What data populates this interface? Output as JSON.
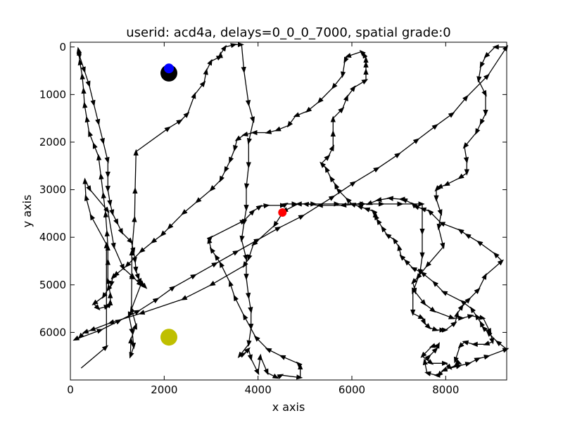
{
  "chart_data": {
    "type": "line",
    "title": "userid: acd4a, delays=0_0_0_7000, spatial grade:0",
    "xlabel": "x axis",
    "ylabel": "y axis",
    "xlim": [
      0,
      9300
    ],
    "ylim": [
      7000,
      -100
    ],
    "y_inverted": true,
    "grid": false,
    "legend": "none",
    "x_ticks": [
      "0",
      "2000",
      "4000",
      "6000",
      "8000"
    ],
    "y_ticks": [
      "0",
      "1000",
      "2000",
      "3000",
      "4000",
      "5000",
      "6000"
    ],
    "series": [
      {
        "style": "black line with arrowheads",
        "color": "#000000",
        "x": [
          230,
          770,
          770,
          440,
          330,
          310,
          420,
          800,
          930,
          1130,
          1350,
          1500,
          1250,
          1320,
          1350,
          1280,
          1290,
          1400,
          1300,
          1310,
          1310,
          1370,
          1380,
          1400,
          2100,
          2350,
          2500,
          2650,
          2850,
          2900,
          3000,
          3200,
          3200,
          3300,
          3500,
          3650,
          3700,
          3800,
          3900,
          3800,
          3800,
          3750,
          3750,
          3700,
          3650,
          3750,
          3750,
          3800,
          3850,
          3850,
          3800,
          3600,
          3700,
          3800,
          3850,
          4000,
          4050,
          4200,
          4400,
          4500,
          4900,
          4900,
          4850,
          4500,
          4200,
          3950,
          3700,
          3500,
          3400,
          3200,
          3100,
          3000,
          2950,
          3000,
          3700,
          3900,
          4050,
          4200,
          4550,
          4600,
          4800,
          5200,
          5700,
          6250,
          6650,
          7050,
          7500,
          7500,
          7500,
          7450,
          7300,
          7300,
          7500,
          7550,
          7650,
          7800,
          7950,
          8000,
          8200,
          8250,
          8350,
          8500,
          8700,
          8850,
          9200,
          9050,
          8700,
          8450,
          8300,
          7900,
          7650,
          7500,
          7350,
          7300,
          7100,
          7050,
          6800,
          6550,
          6350,
          6150,
          5800,
          5300,
          5000,
          4850,
          4550,
          4350,
          3900,
          3800,
          3700,
          3000,
          2400,
          1500,
          850,
          450,
          300,
          200,
          100,
          650,
          1050,
          1450,
          1850,
          2200,
          2650,
          3100,
          3550,
          4000,
          4450,
          4950,
          5600,
          6050,
          6550,
          7000,
          7400,
          7800,
          8150,
          8450,
          8900,
          9300,
          9050,
          8850,
          8750,
          8700,
          8850,
          8850,
          8750,
          8650,
          8400,
          8450,
          8450,
          8300,
          8000,
          7850,
          7800,
          7800,
          7900,
          7850,
          7950,
          7600,
          7400,
          7300,
          7350,
          7550,
          7750,
          8150,
          8350,
          8550,
          8800,
          8950,
          9000,
          8850,
          8600,
          8400,
          8300,
          8200,
          8300,
          8200,
          7950,
          7850,
          7800,
          7600,
          7550,
          7650,
          7800,
          7850,
          7700,
          7500,
          7700,
          8000,
          8100,
          8300,
          8500,
          8700,
          8900,
          9300,
          9100,
          8900,
          8800,
          8750,
          8650,
          8550,
          8350,
          7950,
          7750,
          7500,
          7300,
          7150,
          7050,
          7000,
          6900,
          6750,
          6650,
          6550,
          6500,
          6500,
          6450,
          6300,
          6150,
          6000,
          5900,
          5700,
          5650,
          5550,
          5450,
          5350,
          5500,
          5600,
          5600,
          5600,
          5800,
          5900,
          6050,
          6300,
          6300,
          6300,
          6300,
          6250,
          6200,
          5900,
          5850,
          5800,
          5600,
          5300,
          5050,
          4800,
          4650,
          4400,
          4200,
          3900,
          3700,
          3550,
          3500,
          3400,
          3300,
          3200,
          3000,
          2700,
          2400,
          2100,
          1950,
          1750,
          1500,
          1200,
          950,
          900,
          870,
          800,
          700,
          500,
          600,
          800,
          850,
          850,
          850,
          800,
          800,
          800,
          780,
          750,
          700,
          650,
          600,
          500,
          400,
          350,
          300,
          280,
          250,
          200,
          180,
          170,
          200,
          300,
          400,
          500,
          600,
          700,
          800,
          800,
          800,
          850,
          900,
          1000,
          1100,
          1300,
          1350,
          1380,
          1400,
          1450,
          1500,
          1550,
          1600
        ],
        "y": [
          6750,
          6300,
          4150,
          3550,
          3150,
          2800,
          3000,
          3450,
          4200,
          4650,
          4850,
          5000,
          5650,
          6000,
          6300,
          6500,
          6150,
          5850,
          5500,
          4800,
          4300,
          3600,
          3000,
          2200,
          1700,
          1550,
          1400,
          1000,
          750,
          500,
          300,
          200,
          150,
          0,
          -50,
          -50,
          500,
          1200,
          1550,
          2000,
          2500,
          2950,
          3400,
          3700,
          4050,
          4450,
          4850,
          5250,
          5550,
          5900,
          6250,
          6500,
          6450,
          6350,
          6550,
          6850,
          6500,
          6850,
          6950,
          6900,
          6950,
          6700,
          6650,
          6500,
          6350,
          6100,
          5650,
          5250,
          4950,
          4550,
          4400,
          4250,
          4050,
          4000,
          3650,
          3450,
          3350,
          3330,
          3330,
          3300,
          3300,
          3300,
          3300,
          3300,
          3300,
          3300,
          3300,
          3900,
          4400,
          4750,
          5150,
          5600,
          5700,
          5800,
          5900,
          5950,
          5950,
          5950,
          5800,
          5600,
          5450,
          5300,
          5100,
          4800,
          4500,
          4350,
          4100,
          3950,
          3850,
          3700,
          3450,
          3400,
          3350,
          3300,
          3200,
          3200,
          3180,
          3220,
          3300,
          3300,
          3330,
          3330,
          3300,
          3300,
          3450,
          3750,
          4150,
          4450,
          4600,
          5000,
          5300,
          5600,
          5800,
          5950,
          6000,
          6100,
          6150,
          5950,
          5750,
          5550,
          5300,
          5050,
          4800,
          4550,
          4300,
          4050,
          3800,
          3550,
          3150,
          2850,
          2550,
          2250,
          1950,
          1650,
          1400,
          1050,
          600,
          0,
          0,
          200,
          400,
          700,
          1000,
          1400,
          1600,
          1800,
          2100,
          2400,
          2650,
          2750,
          2900,
          2950,
          3000,
          3200,
          3500,
          3800,
          4200,
          4600,
          4850,
          4950,
          5150,
          5400,
          5550,
          5700,
          5700,
          5650,
          5700,
          6000,
          6200,
          6250,
          6250,
          6200,
          6300,
          6600,
          6650,
          6700,
          6800,
          6900,
          6900,
          6850,
          6600,
          6500,
          6350,
          6250,
          6300,
          6500,
          6650,
          6650,
          6750,
          6700,
          6650,
          6550,
          6500,
          6350,
          6200,
          6000,
          5900,
          5800,
          5650,
          5500,
          5350,
          5150,
          4950,
          4750,
          4650,
          4500,
          4400,
          4200,
          4050,
          3950,
          3800,
          3650,
          3550,
          3500,
          3450,
          3400,
          3350,
          3300,
          3200,
          3000,
          2900,
          2750,
          2550,
          2450,
          2300,
          2100,
          1800,
          1500,
          1300,
          1050,
          850,
          700,
          500,
          350,
          250,
          150,
          100,
          200,
          300,
          600,
          850,
          1150,
          1350,
          1450,
          1650,
          1750,
          1800,
          1800,
          1850,
          1950,
          2150,
          2400,
          2600,
          2800,
          3000,
          3250,
          3500,
          3800,
          3950,
          4100,
          4300,
          4600,
          4800,
          4850,
          5000,
          5100,
          5250,
          5400,
          5500,
          5450,
          5400,
          5350,
          5200,
          4900,
          4500,
          4200,
          3900,
          3500,
          3100,
          2700,
          2300,
          2050,
          1800,
          1500,
          1200,
          900,
          600,
          300,
          100,
          50,
          200,
          500,
          800,
          1200,
          1600,
          2000,
          2400,
          2700,
          3000,
          3300,
          3500,
          3700,
          3900,
          4100,
          4300,
          4500,
          4700,
          4850,
          4950,
          5000,
          5050
        ]
      }
    ],
    "markers": [
      {
        "x": 2100,
        "y": 550,
        "color": "#000000",
        "size": "large"
      },
      {
        "x": 2100,
        "y": 450,
        "color": "#0000ff",
        "size": "medium"
      },
      {
        "x": 4520,
        "y": 3480,
        "color": "#ff0000",
        "size": "small"
      },
      {
        "x": 2100,
        "y": 6100,
        "color": "#bfbf00",
        "size": "large"
      }
    ]
  }
}
